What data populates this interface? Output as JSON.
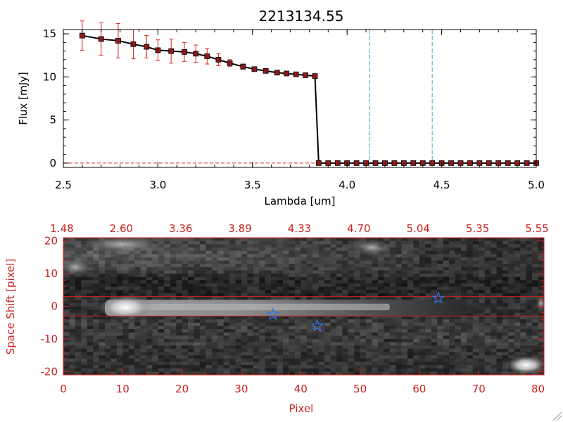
{
  "chart_data": [
    {
      "type": "line",
      "title": "2213134.55",
      "xlabel": "Lambda [um]",
      "ylabel": "Flux [mJy]",
      "xlim": [
        2.5,
        5.0
      ],
      "ylim": [
        -0.5,
        15.5
      ],
      "xticks": [
        2.5,
        3.0,
        3.5,
        4.0,
        4.5,
        5.0
      ],
      "xtick_labels": [
        "2.5",
        "3.0",
        "3.5",
        "4.0",
        "4.5",
        "5.0"
      ],
      "yticks": [
        0,
        5,
        10,
        15
      ],
      "ytick_labels": [
        "0",
        "5",
        "10",
        "15"
      ],
      "series": [
        {
          "x": [
            2.6,
            2.7,
            2.79,
            2.87,
            2.94,
            3.0,
            3.07,
            3.14,
            3.2,
            3.26,
            3.32,
            3.38,
            3.45,
            3.51,
            3.57,
            3.63,
            3.68,
            3.73,
            3.78,
            3.83,
            3.85,
            3.9,
            3.95,
            4.0,
            4.05,
            4.1,
            4.15,
            4.2,
            4.25,
            4.3,
            4.35,
            4.4,
            4.45,
            4.5,
            4.55,
            4.6,
            4.65,
            4.7,
            4.75,
            4.8,
            4.85,
            4.9,
            4.95,
            5.0
          ],
          "y": [
            14.8,
            14.4,
            14.2,
            13.8,
            13.5,
            13.1,
            13.0,
            12.9,
            12.7,
            12.4,
            12.0,
            11.6,
            11.2,
            10.9,
            10.7,
            10.5,
            10.4,
            10.3,
            10.2,
            10.1,
            0,
            0,
            0,
            0,
            0,
            0,
            0,
            0,
            0,
            0,
            0,
            0,
            0,
            0,
            0,
            0,
            0,
            0,
            0,
            0,
            0,
            0,
            0,
            0
          ],
          "yerr": [
            1.7,
            1.9,
            2.0,
            1.7,
            1.3,
            1.2,
            1.4,
            1.1,
            1.0,
            0.9,
            0.7,
            0.4,
            0.3,
            0.2,
            0.2,
            0.2,
            0.2,
            0.2,
            0.2,
            0.2,
            0,
            0,
            0,
            0,
            0,
            0,
            0,
            0,
            0,
            0,
            0,
            0,
            0,
            0,
            0,
            0,
            0,
            0,
            0,
            0,
            0,
            0,
            0,
            0
          ]
        }
      ],
      "vlines": [
        4.12,
        4.45
      ],
      "hline": 0,
      "colors": {
        "line": "#000000",
        "marker": "#8b1a1a",
        "error": "#dd2222",
        "vline": "#3fa7c9",
        "hline": "#dd2222"
      }
    },
    {
      "type": "heatmap",
      "xlabel": "Pixel",
      "ylabel": "Space Shift [pixel]",
      "xlim": [
        0,
        81
      ],
      "ylim": [
        -21,
        21
      ],
      "xticks": [
        0,
        10,
        20,
        30,
        40,
        50,
        60,
        70,
        80
      ],
      "xtick_labels": [
        "0",
        "10",
        "20",
        "30",
        "40",
        "50",
        "60",
        "70",
        "80"
      ],
      "yticks": [
        -20,
        -10,
        0,
        10,
        20
      ],
      "ytick_labels": [
        "-20",
        "-10",
        "0",
        "10",
        "20"
      ],
      "top_axis_labels": [
        "1.48",
        "2.60",
        "3.36",
        "3.89",
        "4.33",
        "4.70",
        "5.04",
        "5.35",
        "5.55"
      ],
      "hlines": [
        3,
        -3
      ],
      "stars": [
        {
          "x": 35.3,
          "y": -2.5
        },
        {
          "x": 42.8,
          "y": -6
        },
        {
          "x": 63.2,
          "y": 2.5
        }
      ],
      "colors": {
        "axes": "#cc2222",
        "star": "#3377ee",
        "band": "#cc2222"
      }
    }
  ]
}
